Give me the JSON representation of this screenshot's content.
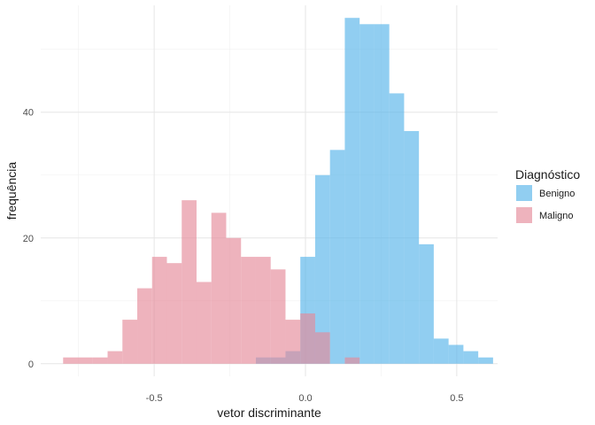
{
  "chart_data": {
    "type": "bar",
    "subtype": "histogram",
    "title": "",
    "xlabel": "vetor discriminante",
    "ylabel": "frequência",
    "xlim": [
      -0.875,
      0.635
    ],
    "ylim": [
      -2,
      57
    ],
    "x_ticks": [
      -0.5,
      0.0,
      0.5
    ],
    "x_tick_labels": [
      "-0.5",
      "0.0",
      "0.5"
    ],
    "y_ticks": [
      0,
      20,
      40
    ],
    "y_tick_labels": [
      "0",
      "20",
      "40"
    ],
    "grid": true,
    "legend_position": "right",
    "legend_title": "Diagnóstico",
    "bin_width": 0.049,
    "series": [
      {
        "name": "Benigno",
        "color": "#56B4E9",
        "bins": [
          {
            "x0": -0.164,
            "x1": -0.115,
            "count": 1
          },
          {
            "x0": -0.115,
            "x1": -0.066,
            "count": 1
          },
          {
            "x0": -0.066,
            "x1": -0.017,
            "count": 2
          },
          {
            "x0": -0.017,
            "x1": 0.032,
            "count": 17
          },
          {
            "x0": 0.032,
            "x1": 0.081,
            "count": 30
          },
          {
            "x0": 0.081,
            "x1": 0.13,
            "count": 34
          },
          {
            "x0": 0.13,
            "x1": 0.179,
            "count": 55
          },
          {
            "x0": 0.179,
            "x1": 0.228,
            "count": 54
          },
          {
            "x0": 0.228,
            "x1": 0.277,
            "count": 54
          },
          {
            "x0": 0.277,
            "x1": 0.326,
            "count": 43
          },
          {
            "x0": 0.326,
            "x1": 0.375,
            "count": 37
          },
          {
            "x0": 0.375,
            "x1": 0.424,
            "count": 19
          },
          {
            "x0": 0.424,
            "x1": 0.473,
            "count": 4
          },
          {
            "x0": 0.473,
            "x1": 0.522,
            "count": 3
          },
          {
            "x0": 0.522,
            "x1": 0.571,
            "count": 2
          },
          {
            "x0": 0.571,
            "x1": 0.62,
            "count": 1
          }
        ]
      },
      {
        "name": "Maligno",
        "color": "#E58A9A",
        "bins": [
          {
            "x0": -0.801,
            "x1": -0.752,
            "count": 1
          },
          {
            "x0": -0.752,
            "x1": -0.703,
            "count": 1
          },
          {
            "x0": -0.703,
            "x1": -0.654,
            "count": 1
          },
          {
            "x0": -0.654,
            "x1": -0.605,
            "count": 2
          },
          {
            "x0": -0.605,
            "x1": -0.556,
            "count": 7
          },
          {
            "x0": -0.556,
            "x1": -0.507,
            "count": 12
          },
          {
            "x0": -0.507,
            "x1": -0.458,
            "count": 17
          },
          {
            "x0": -0.458,
            "x1": -0.409,
            "count": 16
          },
          {
            "x0": -0.409,
            "x1": -0.36,
            "count": 26
          },
          {
            "x0": -0.36,
            "x1": -0.311,
            "count": 13
          },
          {
            "x0": -0.311,
            "x1": -0.262,
            "count": 24
          },
          {
            "x0": -0.262,
            "x1": -0.213,
            "count": 20
          },
          {
            "x0": -0.213,
            "x1": -0.164,
            "count": 17
          },
          {
            "x0": -0.164,
            "x1": -0.115,
            "count": 17
          },
          {
            "x0": -0.115,
            "x1": -0.066,
            "count": 15
          },
          {
            "x0": -0.066,
            "x1": -0.017,
            "count": 7
          },
          {
            "x0": -0.017,
            "x1": 0.032,
            "count": 8
          },
          {
            "x0": 0.032,
            "x1": 0.081,
            "count": 5
          },
          {
            "x0": 0.13,
            "x1": 0.179,
            "count": 1
          }
        ]
      }
    ]
  }
}
